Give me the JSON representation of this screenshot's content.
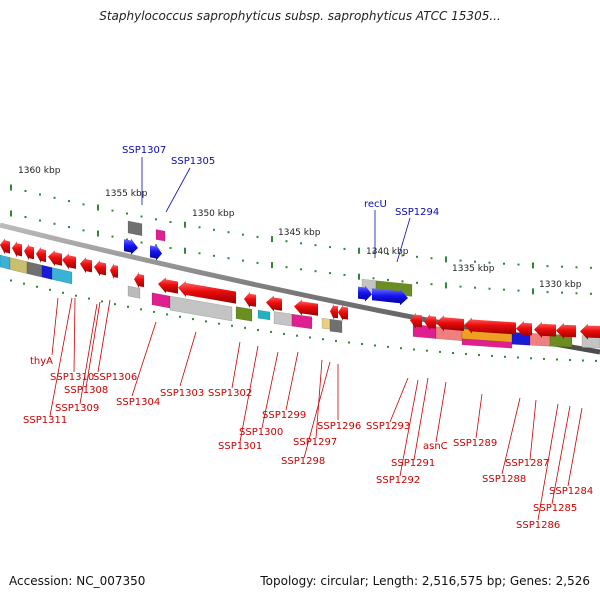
{
  "title": "Staphylococcus saprophyticus subsp. saprophyticus ATCC 15305...",
  "footer": {
    "accession": "Accession: NC_007350",
    "summary": "Topology: circular; Length: 2,516,575 bp; Genes: 2,526"
  },
  "colors": {
    "gene_forward": "#1414ee",
    "gene_reverse": "#ee0c0c",
    "label_forward": "#0b0bb4",
    "label_reverse": "#cc0000",
    "backbone": "#848484",
    "ticks": "#2f8a2f"
  },
  "ruler": {
    "unit": "kbp",
    "labels": [
      "1360 kbp",
      "1355 kbp",
      "1350 kbp",
      "1345 kbp",
      "1340 kbp",
      "1335 kbp",
      "1330 kbp"
    ]
  },
  "genes": {
    "forward": [
      "SSP1307",
      "SSP1305",
      "recU",
      "SSP1294"
    ],
    "reverse": [
      "thyA",
      "SSP1310",
      "SSP1306",
      "SSP1308",
      "SSP1309",
      "SSP1311",
      "SSP1304",
      "SSP1303",
      "SSP1302",
      "SSP1301",
      "SSP1300",
      "SSP1299",
      "SSP1297",
      "SSP1298",
      "SSP1296",
      "SSP1293",
      "SSP1291",
      "SSP1292",
      "asnC",
      "SSP1289",
      "SSP1288",
      "SSP1287",
      "SSP1284",
      "SSP1285",
      "SSP1286"
    ]
  }
}
